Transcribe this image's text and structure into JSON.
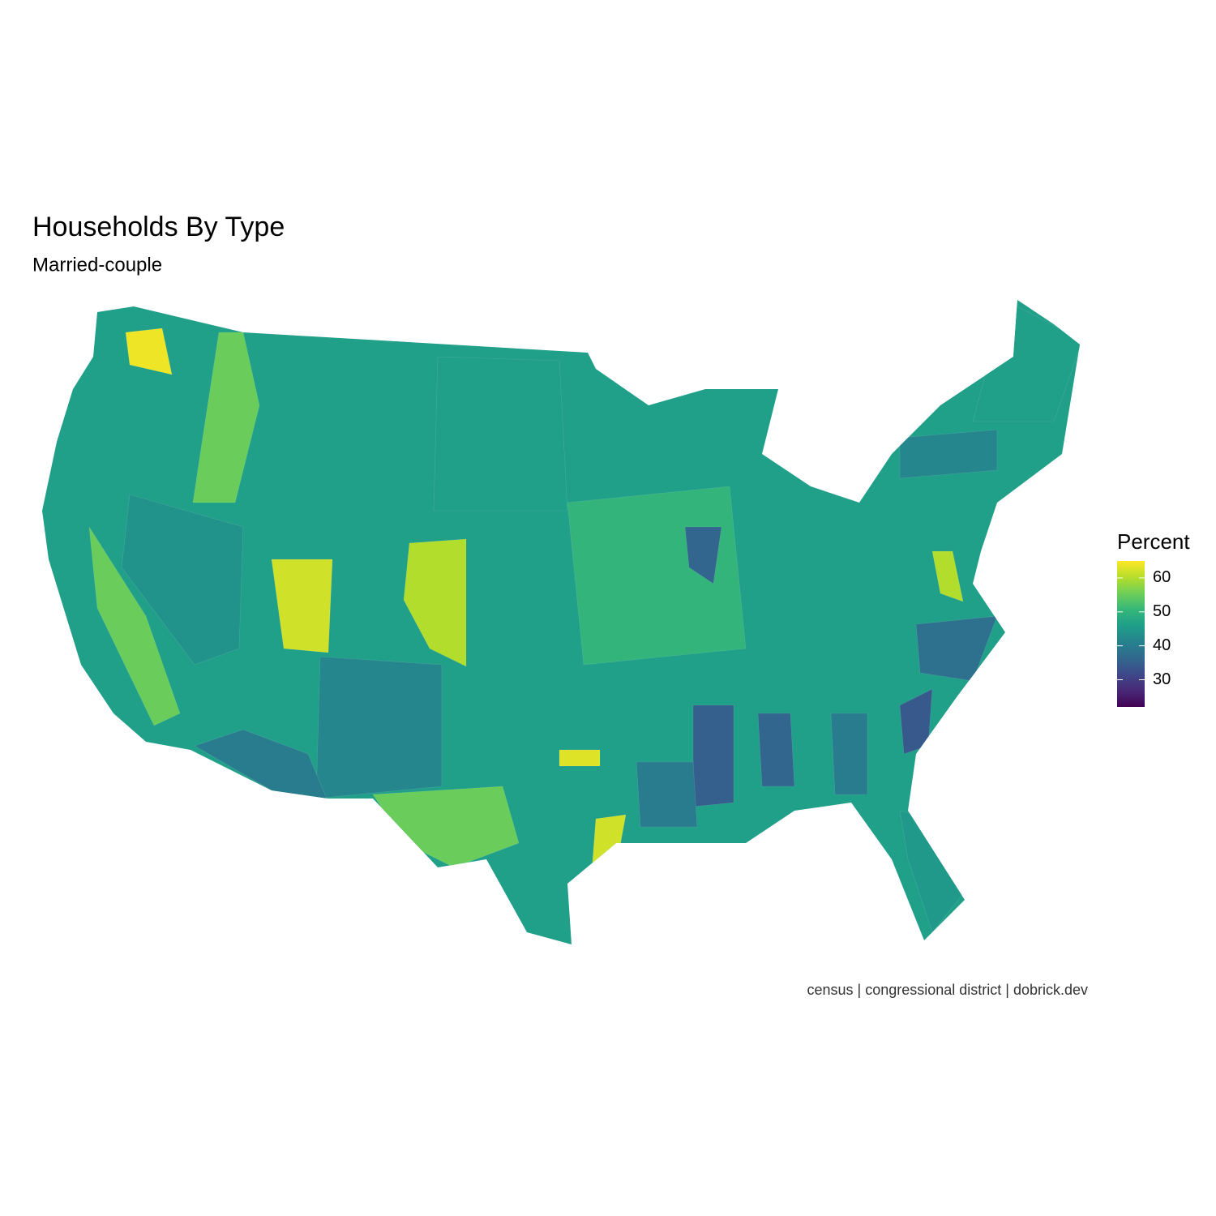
{
  "chart_data": {
    "type": "choropleth",
    "title": "Households By Type",
    "subtitle": "Married-couple",
    "caption": "census | congressional district | dobrick.dev",
    "legend_title": "Percent",
    "legend_lim": [
      22,
      65
    ],
    "legend_ticks": [
      30,
      40,
      50,
      60
    ],
    "colors": [
      "#440154",
      "#482878",
      "#3e4989",
      "#31688e",
      "#26828e",
      "#1f9e89",
      "#35b779",
      "#6ece58",
      "#b5de2b",
      "#fde725"
    ],
    "values": [
      46,
      55,
      64,
      62,
      60,
      46,
      44,
      42,
      55,
      35,
      36,
      40,
      40,
      38,
      34,
      45,
      40,
      55,
      46,
      63,
      62,
      50,
      36,
      60,
      42
    ]
  }
}
